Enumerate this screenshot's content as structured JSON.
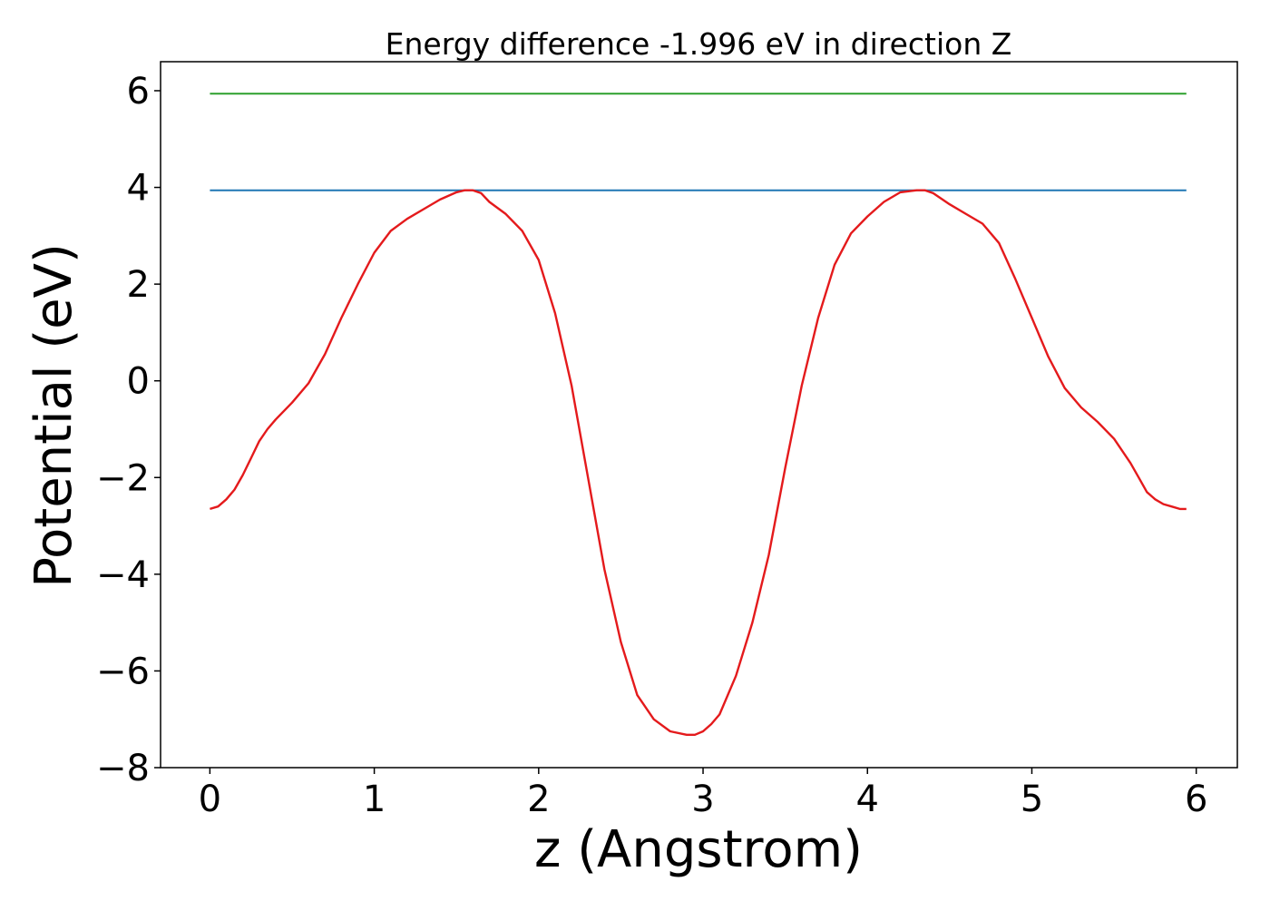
{
  "chart_data": {
    "type": "line",
    "title": "Energy difference -1.996 eV in direction Z",
    "xlabel": "z (Angstrom)",
    "ylabel": "Potential (eV)",
    "xlim": [
      -0.3,
      6.25
    ],
    "ylim": [
      -8.0,
      6.6
    ],
    "x_ticks": [
      0,
      1,
      2,
      3,
      4,
      5,
      6
    ],
    "x_tick_labels": [
      "0",
      "1",
      "2",
      "3",
      "4",
      "5",
      "6"
    ],
    "y_ticks": [
      -8,
      -6,
      -4,
      -2,
      0,
      2,
      4,
      6
    ],
    "y_tick_labels": [
      "−8",
      "−6",
      "−4",
      "−2",
      "0",
      "2",
      "4",
      "6"
    ],
    "grid": false,
    "legend": "none",
    "series": [
      {
        "color": "#2ca02c",
        "x": [
          0.0,
          5.94
        ],
        "y": [
          5.94,
          5.94
        ]
      },
      {
        "color": "#1f77b4",
        "x": [
          0.0,
          5.94
        ],
        "y": [
          3.94,
          3.94
        ]
      },
      {
        "color": "#e41a1c",
        "x": [
          0.0,
          0.05,
          0.1,
          0.15,
          0.2,
          0.25,
          0.3,
          0.35,
          0.4,
          0.5,
          0.6,
          0.7,
          0.8,
          0.9,
          1.0,
          1.1,
          1.2,
          1.3,
          1.4,
          1.5,
          1.55,
          1.6,
          1.65,
          1.7,
          1.8,
          1.9,
          2.0,
          2.1,
          2.2,
          2.3,
          2.4,
          2.5,
          2.6,
          2.7,
          2.8,
          2.9,
          2.95,
          3.0,
          3.05,
          3.1,
          3.2,
          3.3,
          3.4,
          3.5,
          3.6,
          3.7,
          3.8,
          3.9,
          4.0,
          4.1,
          4.2,
          4.3,
          4.35,
          4.4,
          4.5,
          4.6,
          4.7,
          4.8,
          4.9,
          5.0,
          5.1,
          5.2,
          5.3,
          5.4,
          5.5,
          5.6,
          5.65,
          5.7,
          5.75,
          5.8,
          5.85,
          5.9,
          5.94
        ],
        "y": [
          -2.65,
          -2.6,
          -2.45,
          -2.25,
          -1.95,
          -1.6,
          -1.25,
          -1.0,
          -0.8,
          -0.45,
          -0.05,
          0.55,
          1.3,
          2.0,
          2.65,
          3.1,
          3.35,
          3.55,
          3.75,
          3.9,
          3.94,
          3.94,
          3.88,
          3.7,
          3.45,
          3.1,
          2.5,
          1.4,
          -0.1,
          -2.0,
          -3.9,
          -5.4,
          -6.5,
          -7.0,
          -7.25,
          -7.32,
          -7.32,
          -7.25,
          -7.1,
          -6.9,
          -6.1,
          -5.0,
          -3.6,
          -1.8,
          -0.1,
          1.3,
          2.4,
          3.05,
          3.4,
          3.7,
          3.9,
          3.94,
          3.94,
          3.88,
          3.65,
          3.45,
          3.25,
          2.85,
          2.1,
          1.3,
          0.5,
          -0.15,
          -0.55,
          -0.85,
          -1.2,
          -1.7,
          -2.0,
          -2.3,
          -2.45,
          -2.55,
          -2.6,
          -2.65,
          -2.65
        ]
      }
    ]
  }
}
